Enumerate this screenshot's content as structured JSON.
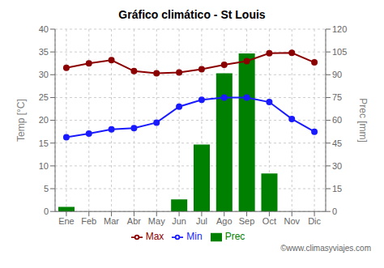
{
  "chart_data": {
    "type": "bar",
    "title": "Gráfico climático - St Louis",
    "categories": [
      "Ene",
      "Feb",
      "Mar",
      "Abr",
      "May",
      "Jun",
      "Jul",
      "Ago",
      "Sep",
      "Oct",
      "Nov",
      "Dic"
    ],
    "series": [
      {
        "name": "Prec",
        "type": "bar",
        "axis": "y2",
        "color": "#008000",
        "values": [
          3,
          0,
          0,
          0,
          0,
          8,
          44,
          91,
          104,
          25,
          0,
          0
        ]
      },
      {
        "name": "Min",
        "type": "line",
        "color": "#1a1aff",
        "marker": "circle",
        "line_style": "solid",
        "values": [
          16.3,
          17.1,
          18.0,
          18.3,
          19.5,
          23.0,
          24.5,
          25.0,
          25.0,
          24.0,
          20.3,
          17.5
        ]
      },
      {
        "name": "Max",
        "type": "line",
        "color": "#8B0000",
        "marker": "circle",
        "line_style": "solid",
        "values": [
          31.5,
          32.5,
          33.2,
          30.8,
          30.3,
          30.5,
          31.2,
          32.2,
          33.0,
          34.7,
          34.8,
          32.7
        ]
      }
    ],
    "ylabel": "Temp [°C]",
    "y2label": "Prec [mm]",
    "ylim": [
      0,
      40
    ],
    "yticks": [
      0,
      5,
      10,
      15,
      20,
      25,
      30,
      35,
      40
    ],
    "y2lim": [
      0,
      120
    ],
    "y2ticks": [
      0,
      15,
      30,
      45,
      60,
      75,
      90,
      105,
      120
    ],
    "grid": true,
    "legend": "bottom",
    "annotations": [
      "©www.climasyviajes.com"
    ]
  }
}
